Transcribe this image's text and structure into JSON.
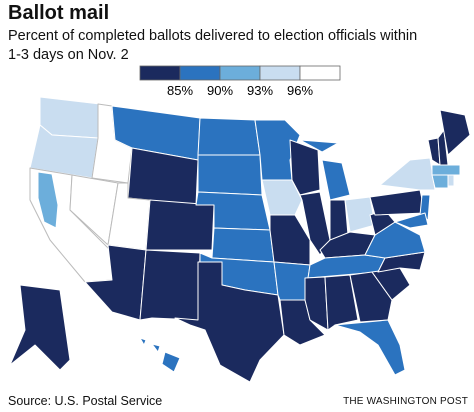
{
  "header": {
    "title": "Ballot mail",
    "subtitle": [
      "Percent of completed ballots delivered to election officials within",
      "1-3 days on Nov. 2"
    ]
  },
  "legend": {
    "colors": [
      "#1b2a5e",
      "#2b73bf",
      "#6caedb",
      "#c9ddf0",
      "#ffffff"
    ],
    "labels": [
      "85%",
      "90%",
      "93%",
      "96%"
    ]
  },
  "footer": {
    "source": "Source: U.S. Postal Service",
    "credit": "THE WASHINGTON POST"
  }
}
